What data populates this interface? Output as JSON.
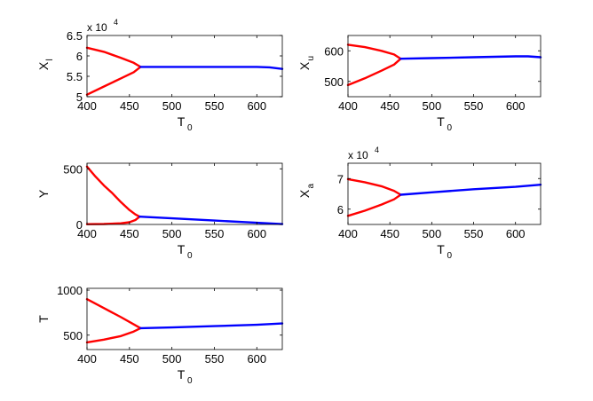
{
  "chart_data": [
    {
      "type": "line",
      "ylabel": "X",
      "ylabel_sub": "l",
      "xlabel": "T",
      "xlabel_sub": "0",
      "xlim": [
        400,
        630
      ],
      "ylim": [
        50000,
        65000
      ],
      "xticks": [
        400,
        450,
        500,
        550,
        600
      ],
      "yticks": [
        50000,
        55000,
        60000,
        65000
      ],
      "yticklabels": [
        "5",
        "5.5",
        "6",
        "6.5"
      ],
      "multiplier": {
        "base": "x 10",
        "exp": "4"
      },
      "series": [
        {
          "color": "#ff0000",
          "x": [
            400,
            420,
            440,
            455,
            463
          ],
          "y": [
            62000,
            61000,
            59500,
            58300,
            57300
          ]
        },
        {
          "color": "#ff0000",
          "x": [
            400,
            420,
            440,
            455,
            463
          ],
          "y": [
            50500,
            52500,
            54500,
            56000,
            57300
          ]
        },
        {
          "color": "#0000ff",
          "x": [
            463,
            500,
            550,
            600,
            615,
            630
          ],
          "y": [
            57300,
            57300,
            57300,
            57300,
            57200,
            56800
          ]
        }
      ]
    },
    {
      "type": "line",
      "ylabel": "X",
      "ylabel_sub": "u",
      "xlabel": "T",
      "xlabel_sub": "0",
      "xlim": [
        400,
        630
      ],
      "ylim": [
        450,
        650
      ],
      "xticks": [
        400,
        450,
        500,
        550,
        600
      ],
      "yticks": [
        500,
        600
      ],
      "yticklabels": [
        "500",
        "600"
      ],
      "series": [
        {
          "color": "#ff0000",
          "x": [
            400,
            420,
            440,
            455,
            463
          ],
          "y": [
            620,
            612,
            600,
            588,
            574
          ]
        },
        {
          "color": "#ff0000",
          "x": [
            400,
            420,
            440,
            455,
            463
          ],
          "y": [
            488,
            510,
            535,
            555,
            574
          ]
        },
        {
          "color": "#0000ff",
          "x": [
            463,
            500,
            550,
            600,
            615,
            630
          ],
          "y": [
            574,
            576,
            579,
            582,
            582,
            579
          ]
        }
      ]
    },
    {
      "type": "line",
      "ylabel": "Y",
      "xlabel": "T",
      "xlabel_sub": "0",
      "xlim": [
        400,
        630
      ],
      "ylim": [
        0,
        550
      ],
      "xticks": [
        400,
        450,
        500,
        550,
        600
      ],
      "yticks": [
        0,
        500
      ],
      "yticklabels": [
        "0",
        "500"
      ],
      "series": [
        {
          "color": "#ff0000",
          "x": [
            400,
            410,
            420,
            430,
            440,
            450,
            457,
            462
          ],
          "y": [
            520,
            430,
            350,
            280,
            200,
            130,
            90,
            70
          ]
        },
        {
          "color": "#ff0000",
          "x": [
            400,
            420,
            440,
            450,
            457,
            462
          ],
          "y": [
            2,
            4,
            10,
            20,
            40,
            70
          ]
        },
        {
          "color": "#0000ff",
          "x": [
            462,
            500,
            550,
            600,
            630
          ],
          "y": [
            70,
            55,
            35,
            15,
            3
          ]
        }
      ]
    },
    {
      "type": "line",
      "ylabel": "X",
      "ylabel_sub": "a",
      "xlabel": "T",
      "xlabel_sub": "0",
      "xlim": [
        400,
        630
      ],
      "ylim": [
        55000,
        75000
      ],
      "xticks": [
        400,
        450,
        500,
        550,
        600
      ],
      "yticks": [
        60000,
        70000
      ],
      "yticklabels": [
        "6",
        "7"
      ],
      "multiplier": {
        "base": "x 10",
        "exp": "4"
      },
      "series": [
        {
          "color": "#ff0000",
          "x": [
            400,
            420,
            440,
            455,
            463
          ],
          "y": [
            69800,
            68800,
            67500,
            66000,
            64700
          ]
        },
        {
          "color": "#ff0000",
          "x": [
            400,
            420,
            440,
            455,
            463
          ],
          "y": [
            57800,
            59500,
            61500,
            63200,
            64700
          ]
        },
        {
          "color": "#0000ff",
          "x": [
            463,
            500,
            550,
            600,
            630
          ],
          "y": [
            64700,
            65500,
            66500,
            67300,
            68000
          ]
        }
      ]
    },
    {
      "type": "line",
      "ylabel": "T",
      "xlabel": "T",
      "xlabel_sub": "0",
      "xlim": [
        400,
        630
      ],
      "ylim": [
        340,
        1020
      ],
      "xticks": [
        400,
        450,
        500,
        550,
        600
      ],
      "yticks": [
        500,
        1000
      ],
      "yticklabels": [
        "500",
        "1000"
      ],
      "series": [
        {
          "color": "#ff0000",
          "x": [
            400,
            420,
            440,
            455,
            463
          ],
          "y": [
            900,
            800,
            700,
            620,
            578
          ]
        },
        {
          "color": "#ff0000",
          "x": [
            400,
            420,
            440,
            455,
            463
          ],
          "y": [
            420,
            450,
            490,
            540,
            578
          ]
        },
        {
          "color": "#0000ff",
          "x": [
            463,
            500,
            550,
            600,
            630
          ],
          "y": [
            578,
            585,
            600,
            615,
            630
          ]
        }
      ]
    }
  ]
}
